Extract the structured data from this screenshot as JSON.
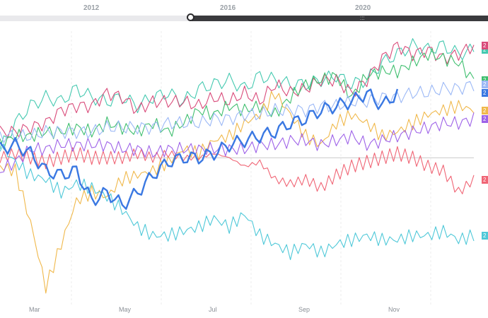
{
  "range_selector": {
    "year_labels": [
      "2012",
      "2016",
      "2020"
    ],
    "grip_glyph": ":::",
    "position": 0.39
  },
  "chart_data": {
    "type": "line",
    "title": "",
    "xlabel": "",
    "ylabel": "",
    "x_ticks": [
      "Mar",
      "May",
      "Jul",
      "Sep",
      "Nov"
    ],
    "baseline": 0,
    "ylim": [
      -33,
      28
    ],
    "series": [
      {
        "color": "#45c9b0",
        "end_label": "2",
        "values": [
          2,
          8,
          12,
          14,
          13,
          16,
          14,
          13,
          14,
          12,
          14,
          15,
          13,
          16,
          17,
          18,
          16,
          19,
          18,
          17,
          17,
          18,
          19,
          17,
          18,
          22,
          24,
          26,
          25,
          26,
          24,
          25
        ]
      },
      {
        "color": "#d94b7a",
        "end_label": "2",
        "values": [
          6,
          6,
          7,
          8,
          11,
          12,
          12,
          15,
          14,
          11,
          13,
          13,
          13,
          12,
          14,
          13,
          15,
          13,
          17,
          15,
          16,
          18,
          18,
          15,
          18,
          23,
          26,
          24,
          25,
          23,
          24,
          26
        ]
      },
      {
        "color": "#3fbf6f",
        "end_label": "2",
        "values": [
          3,
          5,
          5,
          6,
          6,
          7,
          6,
          8,
          7,
          6,
          8,
          6,
          8,
          11,
          10,
          12,
          11,
          12,
          10,
          14,
          17,
          18,
          19,
          14,
          19,
          20,
          20,
          22,
          24,
          23,
          22,
          18
        ]
      },
      {
        "color": "#f0b84a",
        "end_label": "2",
        "values": [
          -2,
          -3,
          -15,
          -30,
          -20,
          -10,
          -8,
          -9,
          -5,
          -4,
          -3,
          -1,
          2,
          1,
          4,
          5,
          8,
          10,
          15,
          10,
          5,
          3,
          8,
          10,
          8,
          5,
          6,
          8,
          10,
          11,
          12,
          11
        ]
      },
      {
        "color": "#f06575",
        "end_label": "2",
        "values": [
          0,
          1,
          0,
          -1,
          0,
          1,
          0,
          0,
          0,
          1,
          0,
          1,
          0,
          0,
          1,
          0,
          -2,
          -1,
          -5,
          -6,
          -5,
          -7,
          -4,
          -2,
          -1,
          0,
          1,
          0,
          -2,
          -3,
          -8,
          -5
        ]
      },
      {
        "color": "#4ec8d8",
        "end_label": "2",
        "values": [
          3,
          -1,
          -4,
          -5,
          -8,
          -6,
          -7,
          -9,
          -12,
          -16,
          -18,
          -18,
          -17,
          -16,
          -14,
          -16,
          -13,
          -18,
          -20,
          -22,
          -20,
          -22,
          -20,
          -19,
          -18,
          -19,
          -19,
          -18,
          -18,
          -17,
          -19,
          -18
        ]
      },
      {
        "color": "#9e62e8",
        "end_label": "2",
        "values": [
          -3,
          -1,
          2,
          2,
          3,
          3,
          3,
          3,
          2,
          2,
          1,
          2,
          2,
          2,
          2,
          2,
          2,
          3,
          3,
          4,
          4,
          3,
          4,
          5,
          3,
          4,
          5,
          6,
          7,
          8,
          8,
          9
        ]
      },
      {
        "color": "#9bb8f6",
        "end_label": "2",
        "values": [
          5,
          5,
          5,
          6,
          6,
          6,
          6,
          7,
          7,
          7,
          7,
          8,
          8,
          8,
          9,
          9,
          10,
          10,
          11,
          11,
          11,
          12,
          12,
          13,
          13,
          14,
          14,
          15,
          15,
          16,
          16,
          17
        ]
      },
      {
        "color": "#3a78e2",
        "end_label": "2",
        "width": 2.4,
        "values": [
          2,
          3,
          1,
          -3,
          -4,
          -3,
          -10,
          -8,
          -11,
          -8,
          -4,
          -1,
          0,
          0,
          1,
          3,
          4,
          5,
          6,
          8,
          9,
          11,
          12,
          13,
          15,
          12,
          15,
          null,
          null,
          null,
          null,
          null
        ]
      }
    ]
  }
}
